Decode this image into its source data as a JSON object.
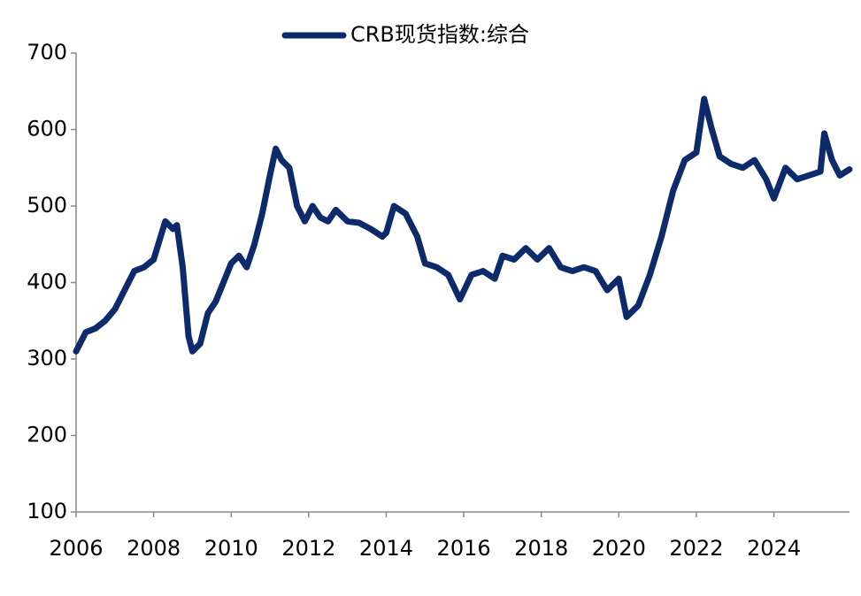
{
  "chart_data": {
    "type": "line",
    "x": [
      2006.0,
      2006.25,
      2006.5,
      2006.75,
      2007.0,
      2007.25,
      2007.5,
      2007.75,
      2008.0,
      2008.3,
      2008.5,
      2008.6,
      2008.75,
      2008.9,
      2009.0,
      2009.2,
      2009.4,
      2009.6,
      2009.8,
      2010.0,
      2010.2,
      2010.4,
      2010.6,
      2010.8,
      2011.0,
      2011.15,
      2011.3,
      2011.5,
      2011.7,
      2011.9,
      2012.1,
      2012.3,
      2012.5,
      2012.7,
      2013.0,
      2013.3,
      2013.6,
      2013.9,
      2014.0,
      2014.2,
      2014.5,
      2014.8,
      2015.0,
      2015.3,
      2015.6,
      2015.9,
      2016.2,
      2016.5,
      2016.8,
      2017.0,
      2017.3,
      2017.6,
      2017.9,
      2018.2,
      2018.5,
      2018.8,
      2019.1,
      2019.4,
      2019.7,
      2020.0,
      2020.2,
      2020.5,
      2020.8,
      2021.1,
      2021.4,
      2021.7,
      2022.0,
      2022.2,
      2022.4,
      2022.6,
      2022.9,
      2023.2,
      2023.5,
      2023.8,
      2024.0,
      2024.3,
      2024.6,
      2024.9,
      2025.2,
      2025.3,
      2025.5,
      2025.7,
      2025.95
    ],
    "series": [
      {
        "name": "CRB现货指数:综合",
        "color": "#0d2a6b",
        "values": [
          310,
          335,
          340,
          350,
          365,
          390,
          415,
          420,
          430,
          480,
          470,
          475,
          420,
          330,
          310,
          320,
          360,
          375,
          400,
          425,
          435,
          420,
          450,
          490,
          540,
          575,
          560,
          550,
          500,
          480,
          500,
          485,
          480,
          495,
          480,
          478,
          470,
          460,
          465,
          500,
          490,
          460,
          425,
          420,
          410,
          378,
          410,
          415,
          405,
          435,
          430,
          445,
          430,
          445,
          420,
          415,
          420,
          415,
          390,
          405,
          355,
          370,
          410,
          460,
          520,
          560,
          570,
          640,
          600,
          565,
          555,
          550,
          560,
          535,
          510,
          550,
          535,
          540,
          545,
          595,
          560,
          540,
          548
        ]
      }
    ],
    "xlim": [
      2006,
      2025.95
    ],
    "xticks": [
      2006,
      2008,
      2010,
      2012,
      2014,
      2016,
      2018,
      2020,
      2022,
      2024
    ],
    "ylim": [
      100,
      700
    ],
    "yticks": [
      100,
      200,
      300,
      400,
      500,
      600,
      700
    ],
    "legend": "top",
    "grid": false
  }
}
